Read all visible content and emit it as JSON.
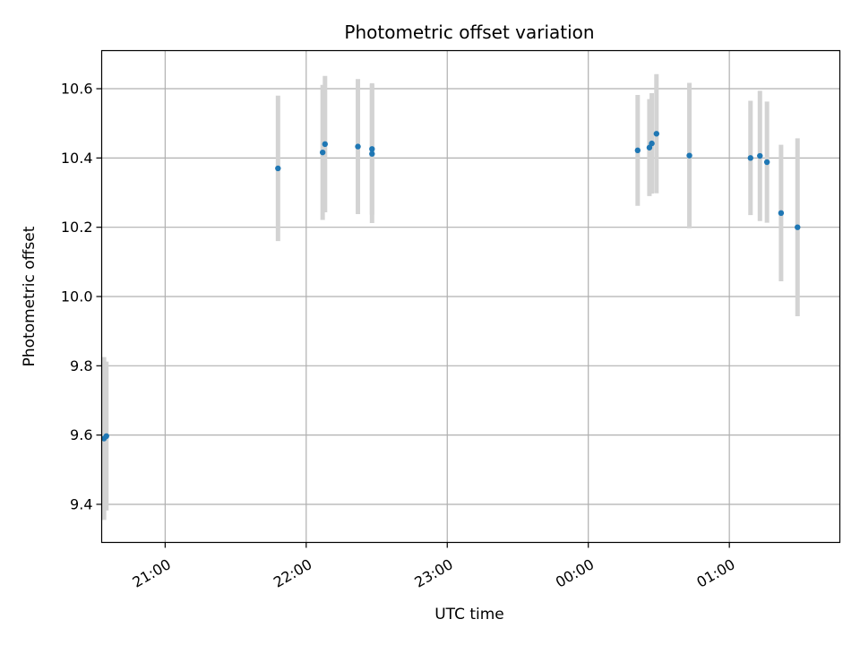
{
  "chart_data": {
    "type": "scatter",
    "title": "Photometric offset variation",
    "xlabel": "UTC time",
    "ylabel": "Photometric offset",
    "x_axis_type": "time",
    "xlim": [
      "20:33",
      "01:47"
    ],
    "ylim": [
      9.29,
      10.71
    ],
    "x_ticks": [
      {
        "time": "21:00",
        "label": "21:00"
      },
      {
        "time": "22:00",
        "label": "22:00"
      },
      {
        "time": "23:00",
        "label": "23:00"
      },
      {
        "time": "00:00",
        "label": "00:00"
      },
      {
        "time": "01:00",
        "label": "01:00"
      }
    ],
    "y_ticks": [
      9.4,
      9.6,
      9.8,
      10.0,
      10.2,
      10.4,
      10.6
    ],
    "y_tick_labels": [
      "9.4",
      "9.6",
      "9.8",
      "10.0",
      "10.2",
      "10.4",
      "10.6"
    ],
    "grid": true,
    "marker_color": "#1f77b4",
    "errorbar_color": "#d3d3d3",
    "points": [
      {
        "t": "20:34",
        "y": 9.59,
        "err": 0.235
      },
      {
        "t": "20:35",
        "y": 9.597,
        "err": 0.215
      },
      {
        "t": "21:48",
        "y": 10.37,
        "err": 0.21
      },
      {
        "t": "22:07",
        "y": 10.416,
        "err": 0.195
      },
      {
        "t": "22:08",
        "y": 10.44,
        "err": 0.197
      },
      {
        "t": "22:22",
        "y": 10.433,
        "err": 0.195
      },
      {
        "t": "22:28",
        "y": 10.426,
        "err": 0.19
      },
      {
        "t": "22:28",
        "y": 10.412,
        "err": 0.2
      },
      {
        "t": "00:21",
        "y": 10.422,
        "err": 0.16
      },
      {
        "t": "00:26",
        "y": 10.43,
        "err": 0.14
      },
      {
        "t": "00:27",
        "y": 10.442,
        "err": 0.145
      },
      {
        "t": "00:29",
        "y": 10.47,
        "err": 0.172
      },
      {
        "t": "00:43",
        "y": 10.407,
        "err": 0.21
      },
      {
        "t": "01:09",
        "y": 10.4,
        "err": 0.165
      },
      {
        "t": "01:13",
        "y": 10.406,
        "err": 0.188
      },
      {
        "t": "01:16",
        "y": 10.388,
        "err": 0.175
      },
      {
        "t": "01:22",
        "y": 10.241,
        "err": 0.197
      },
      {
        "t": "01:29",
        "y": 10.2,
        "err": 0.257
      }
    ]
  }
}
